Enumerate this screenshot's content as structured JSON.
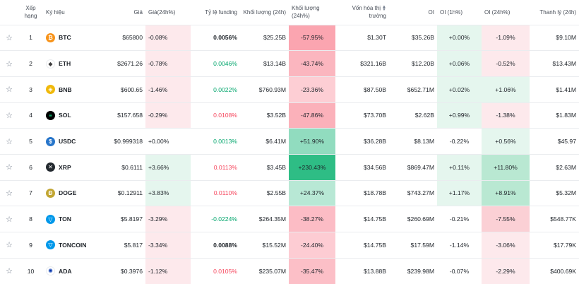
{
  "headers": {
    "rank": "Xếp hạng",
    "symbol": "Ký hiệu",
    "price": "Giá",
    "change": "Giá(24h%)",
    "funding": "Tỷ lệ funding",
    "volume": "Khối lượng (24h)",
    "volume_pct": "Khối lượng (24h%)",
    "mcap_line1": "Vốn hóa thị",
    "mcap_line2": "trường",
    "oi": "OI",
    "oi_1h": "OI (1h%)",
    "oi_24h": "OI (24h%)",
    "liq": "Thanh lý (24h)"
  },
  "colors": {
    "pos_text": "#0ecb81",
    "neg_text": "#f6465d",
    "pos_bg_light": "#e5f6ee",
    "neg_bg_light": "#fde9ec",
    "pos_bg_strong": "#2ebd85",
    "neg_bg_strong": "#f5a3ab"
  },
  "rows": [
    {
      "rank": "1",
      "symbol": "BTC",
      "icon": "bitcoin-icon",
      "price": "$65800",
      "change": "-0.08%",
      "funding": "0.0056%",
      "volume": "$25.25B",
      "volume_pct": "-57.95%",
      "mcap": "$1.30T",
      "oi": "$35.26B",
      "oi_1h": "+0.00%",
      "oi_24h": "-1.09%",
      "liq": "$9.10M"
    },
    {
      "rank": "2",
      "symbol": "ETH",
      "icon": "ethereum-icon",
      "price": "$2671.26",
      "change": "-0.78%",
      "funding": "0.0046%",
      "volume": "$13.14B",
      "volume_pct": "-43.74%",
      "mcap": "$321.16B",
      "oi": "$12.20B",
      "oi_1h": "+0.06%",
      "oi_24h": "-0.52%",
      "liq": "$13.43M"
    },
    {
      "rank": "3",
      "symbol": "BNB",
      "icon": "bnb-icon",
      "price": "$600.65",
      "change": "-1.46%",
      "funding": "0.0022%",
      "volume": "$760.93M",
      "volume_pct": "-23.36%",
      "mcap": "$87.50B",
      "oi": "$652.71M",
      "oi_1h": "+0.02%",
      "oi_24h": "+1.06%",
      "liq": "$1.41M"
    },
    {
      "rank": "4",
      "symbol": "SOL",
      "icon": "solana-icon",
      "price": "$157.658",
      "change": "-0.29%",
      "funding": "0.0108%",
      "volume": "$3.52B",
      "volume_pct": "-47.86%",
      "mcap": "$73.70B",
      "oi": "$2.62B",
      "oi_1h": "+0.99%",
      "oi_24h": "-1.38%",
      "liq": "$1.83M"
    },
    {
      "rank": "5",
      "symbol": "USDC",
      "icon": "usdc-icon",
      "price": "$0.999318",
      "change": "+0.00%",
      "funding": "0.0013%",
      "volume": "$6.41M",
      "volume_pct": "+51.90%",
      "mcap": "$36.28B",
      "oi": "$8.13M",
      "oi_1h": "-0.22%",
      "oi_24h": "+0.56%",
      "liq": "$45.97"
    },
    {
      "rank": "6",
      "symbol": "XRP",
      "icon": "xrp-icon",
      "price": "$0.6111",
      "change": "+3.66%",
      "funding": "0.0113%",
      "volume": "$3.45B",
      "volume_pct": "+230.43%",
      "mcap": "$34.56B",
      "oi": "$869.47M",
      "oi_1h": "+0.11%",
      "oi_24h": "+11.80%",
      "liq": "$2.63M"
    },
    {
      "rank": "7",
      "symbol": "DOGE",
      "icon": "doge-icon",
      "price": "$0.12911",
      "change": "+3.83%",
      "funding": "0.0110%",
      "volume": "$2.55B",
      "volume_pct": "+24.37%",
      "mcap": "$18.78B",
      "oi": "$743.27M",
      "oi_1h": "+1.17%",
      "oi_24h": "+8.91%",
      "liq": "$5.32M"
    },
    {
      "rank": "8",
      "symbol": "TON",
      "icon": "ton-icon",
      "price": "$5.8197",
      "change": "-3.29%",
      "funding": "-0.0224%",
      "volume": "$264.35M",
      "volume_pct": "-38.27%",
      "mcap": "$14.75B",
      "oi": "$260.69M",
      "oi_1h": "-0.21%",
      "oi_24h": "-7.55%",
      "liq": "$548.77K"
    },
    {
      "rank": "9",
      "symbol": "TONCOIN",
      "icon": "toncoin-icon",
      "price": "$5.817",
      "change": "-3.34%",
      "funding": "0.0088%",
      "volume": "$15.52M",
      "volume_pct": "-24.40%",
      "mcap": "$14.75B",
      "oi": "$17.59M",
      "oi_1h": "-1.14%",
      "oi_24h": "-3.06%",
      "liq": "$17.79K"
    },
    {
      "rank": "10",
      "symbol": "ADA",
      "icon": "cardano-icon",
      "price": "$0.3976",
      "change": "-1.12%",
      "funding": "0.0105%",
      "volume": "$235.07M",
      "volume_pct": "-35.47%",
      "mcap": "$13.88B",
      "oi": "$239.98M",
      "oi_1h": "-0.07%",
      "oi_24h": "-2.29%",
      "liq": "$400.69K"
    }
  ]
}
